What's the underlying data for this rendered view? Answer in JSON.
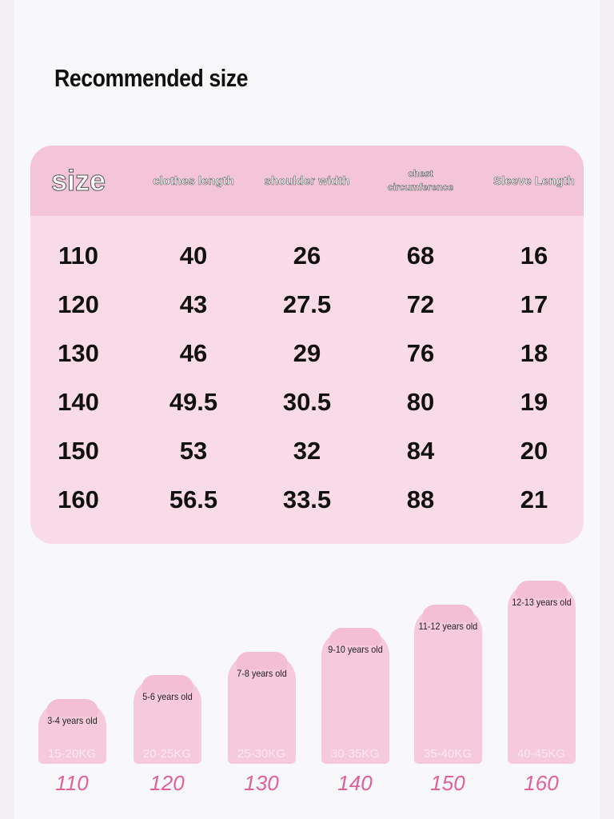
{
  "title": "Recommended size",
  "table": {
    "headers": [
      "size",
      "clothes length",
      "shoulder width",
      "chest circumference",
      "Sleeve Length"
    ],
    "rows": [
      [
        "110",
        "40",
        "26",
        "68",
        "16"
      ],
      [
        "120",
        "43",
        "27.5",
        "72",
        "17"
      ],
      [
        "130",
        "46",
        "29",
        "76",
        "18"
      ],
      [
        "140",
        "49.5",
        "30.5",
        "80",
        "19"
      ],
      [
        "150",
        "53",
        "32",
        "84",
        "20"
      ],
      [
        "160",
        "56.5",
        "33.5",
        "88",
        "21"
      ]
    ]
  },
  "figures": [
    {
      "age": "3-4 years old",
      "weight": "15-20KG",
      "size": "110"
    },
    {
      "age": "5-6 years old",
      "weight": "20-25KG",
      "size": "120"
    },
    {
      "age": "7-8 years old",
      "weight": "25-30KG",
      "size": "130"
    },
    {
      "age": "9-10 years old",
      "weight": "30-35KG",
      "size": "140"
    },
    {
      "age": "11-12 years old",
      "weight": "35-40KG",
      "size": "150"
    },
    {
      "age": "12-13 years old",
      "weight": "40-45KG",
      "size": "160"
    }
  ]
}
